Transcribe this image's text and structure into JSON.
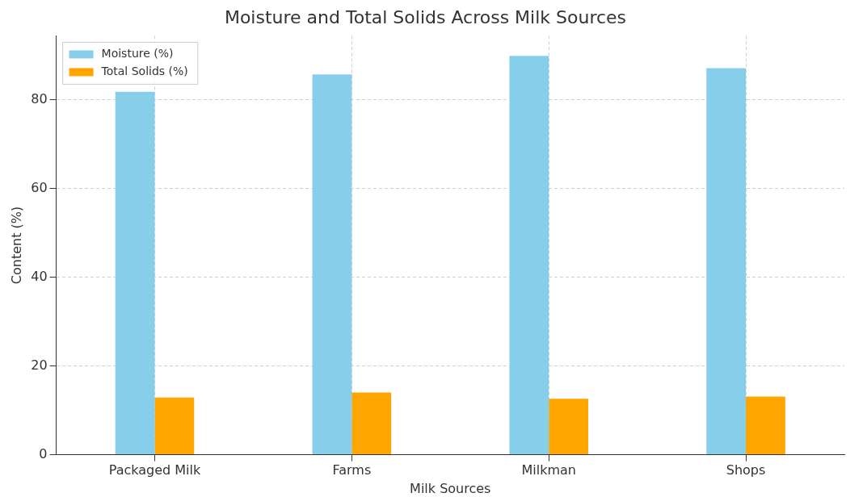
{
  "chart_data": {
    "type": "bar",
    "title": "Moisture and Total Solids Across Milk Sources",
    "xlabel": "Milk Sources",
    "ylabel": "Content (%)",
    "categories": [
      "Packaged Milk",
      "Farms",
      "Milkman",
      "Shops"
    ],
    "series": [
      {
        "name": "Moisture (%)",
        "color": "#87ceeb",
        "values": [
          81.8,
          85.7,
          89.9,
          87.1
        ]
      },
      {
        "name": "Total Solids (%)",
        "color": "#ffa500",
        "values": [
          12.9,
          14.0,
          12.6,
          13.1
        ]
      }
    ],
    "ylim": [
      0,
      94.4
    ],
    "yticks": [
      0,
      20,
      40,
      60,
      80
    ],
    "grid": true,
    "legend": "top left"
  }
}
